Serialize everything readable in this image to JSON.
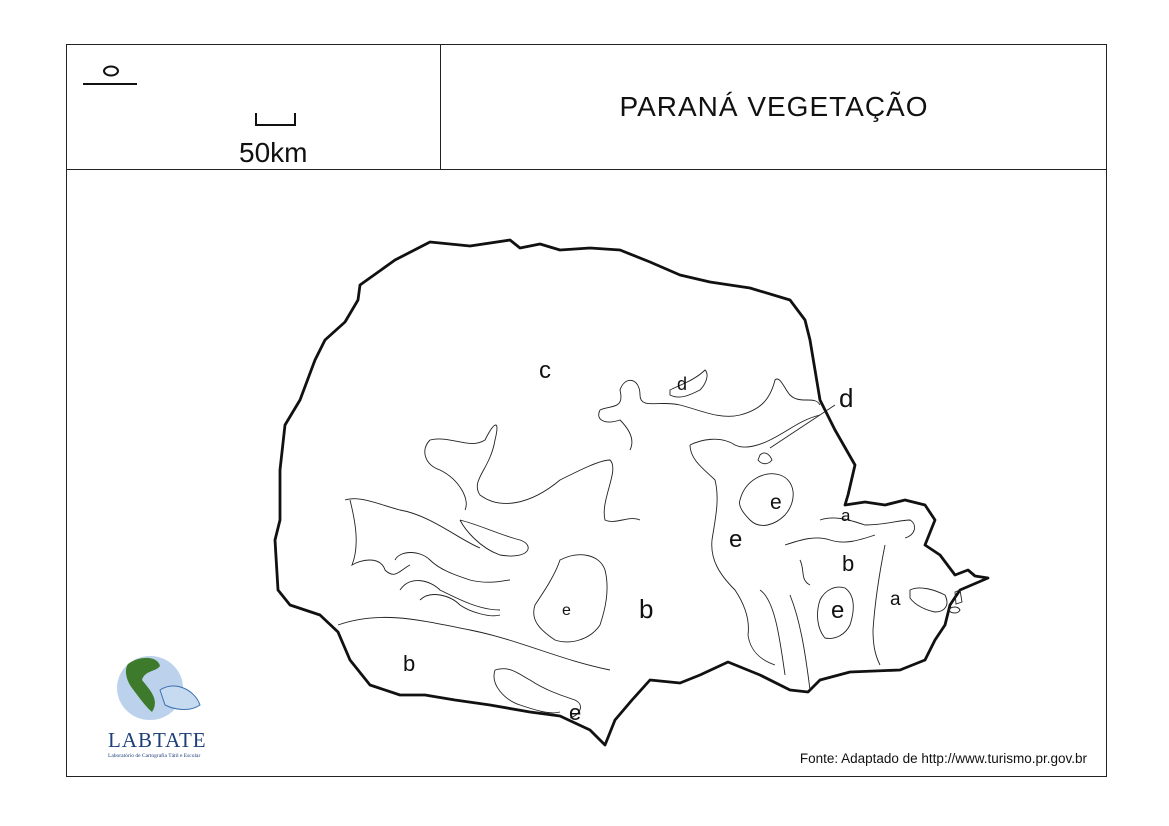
{
  "header": {
    "title": "PARANÁ  VEGETAÇÃO",
    "scale_label": "50km"
  },
  "legend_labels": {
    "c": "c",
    "d_north": "d",
    "d_east": "d",
    "e_center": "e",
    "e_small": "e",
    "e_east": "e",
    "e_south": "e",
    "e_southeast": "e",
    "b_center": "b",
    "b_south": "b",
    "b_east": "b",
    "a_east": "a",
    "a_coast": "a"
  },
  "logo": {
    "name": "LABTATE",
    "subtitle": "Laboratório de Cartografia Tátil e Escolar"
  },
  "source": "Fonte: Adaptado de http://www.turismo.pr.gov.br"
}
